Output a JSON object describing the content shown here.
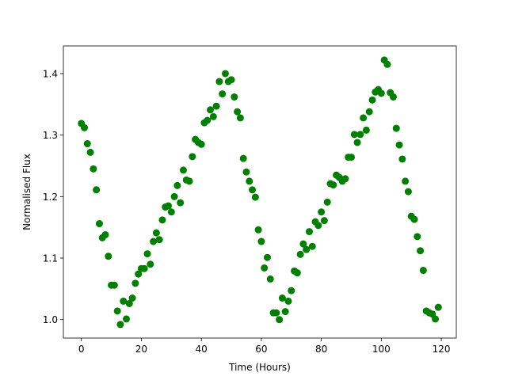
{
  "chart_data": {
    "type": "scatter",
    "title": "",
    "xlabel": "Time (Hours)",
    "ylabel": "Normalised Flux",
    "xlim": [
      -6,
      125
    ],
    "ylim": [
      0.97,
      1.445
    ],
    "xticks": [
      0,
      20,
      40,
      60,
      80,
      100,
      120
    ],
    "yticks": [
      1.0,
      1.1,
      1.2,
      1.3,
      1.4
    ],
    "ytick_labels": [
      "1.0",
      "1.1",
      "1.2",
      "1.3",
      "1.4"
    ],
    "grid": false,
    "legend": "none",
    "marker_color": "#008000",
    "series": [
      {
        "x": [
          0,
          1,
          2,
          3,
          4,
          5,
          6,
          7,
          8,
          9,
          10,
          11,
          12,
          13,
          14,
          15,
          16,
          17,
          18,
          19,
          20,
          21,
          22,
          23,
          24,
          25,
          26,
          27,
          28,
          29,
          30,
          31,
          32,
          33,
          34,
          35,
          36,
          37,
          38,
          39,
          40,
          41,
          42,
          43,
          44,
          45,
          46,
          47,
          48,
          49,
          50,
          51,
          52,
          53,
          54,
          55,
          56,
          57,
          58,
          59,
          60,
          61,
          62,
          63,
          64,
          65,
          66,
          67,
          68,
          69,
          70,
          71,
          72,
          73,
          74,
          75,
          76,
          77,
          78,
          79,
          80,
          81,
          82,
          83,
          84,
          85,
          86,
          87,
          88,
          89,
          90,
          91,
          92,
          93,
          94,
          95,
          96,
          97,
          98,
          99,
          100,
          101,
          102,
          103,
          104,
          105,
          106,
          107,
          108,
          109,
          110,
          111,
          112,
          113,
          114,
          115,
          116,
          117,
          118,
          119
        ],
        "y": [
          1.319,
          1.312,
          1.286,
          1.272,
          1.245,
          1.211,
          1.156,
          1.133,
          1.138,
          1.103,
          1.056,
          1.056,
          1.014,
          0.992,
          1.03,
          1.001,
          1.026,
          1.035,
          1.059,
          1.074,
          1.083,
          1.083,
          1.107,
          1.09,
          1.127,
          1.141,
          1.13,
          1.162,
          1.183,
          1.185,
          1.175,
          1.2,
          1.218,
          1.19,
          1.243,
          1.227,
          1.225,
          1.265,
          1.293,
          1.288,
          1.285,
          1.32,
          1.324,
          1.341,
          1.33,
          1.347,
          1.387,
          1.367,
          1.4,
          1.387,
          1.39,
          1.362,
          1.338,
          1.328,
          1.262,
          1.24,
          1.225,
          1.211,
          1.199,
          1.146,
          1.127,
          1.084,
          1.101,
          1.066,
          1.011,
          1.011,
          1.0,
          1.035,
          1.013,
          1.03,
          1.047,
          1.079,
          1.076,
          1.106,
          1.123,
          1.114,
          1.143,
          1.119,
          1.159,
          1.153,
          1.175,
          1.161,
          1.191,
          1.221,
          1.219,
          1.235,
          1.231,
          1.225,
          1.229,
          1.264,
          1.264,
          1.301,
          1.288,
          1.301,
          1.328,
          1.308,
          1.338,
          1.357,
          1.37,
          1.374,
          1.368,
          1.422,
          1.415,
          1.369,
          1.362,
          1.311,
          1.284,
          1.261,
          1.225,
          1.208,
          1.168,
          1.163,
          1.135,
          1.112,
          1.08,
          1.014,
          1.011,
          1.009,
          1.001,
          1.02
        ]
      }
    ]
  }
}
